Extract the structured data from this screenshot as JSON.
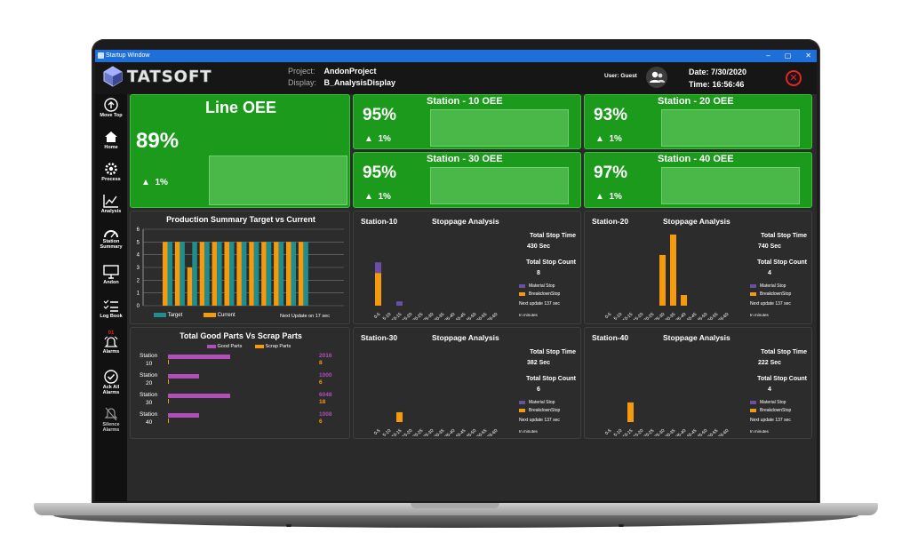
{
  "window": {
    "title": "Startup Window"
  },
  "header": {
    "logo_text": "TATSOFT",
    "project_label": "Project:",
    "project_value": "AndonProject",
    "display_label": "Display:",
    "display_value": "B_AnalysisDisplay",
    "user_label": "User: Guest",
    "date_label": "Date: 7/30/2020",
    "time_label": "Time: 16:56:46"
  },
  "sidebar": {
    "items": [
      {
        "label": "Move Top",
        "icon": "arrow-up-circle-icon"
      },
      {
        "label": "Home",
        "icon": "home-icon"
      },
      {
        "label": "Process",
        "icon": "gear-icon"
      },
      {
        "label": "Analysis",
        "icon": "line-chart-icon"
      },
      {
        "label": "Station Summary",
        "icon": "gauge-icon"
      },
      {
        "label": "Andon",
        "icon": "monitor-icon"
      },
      {
        "label": "Log Book",
        "icon": "checklist-icon"
      },
      {
        "label": "Alarms",
        "icon": "alarm-bell-icon",
        "badge": "01"
      },
      {
        "label": "Ack All Alarms",
        "icon": "check-circle-icon"
      },
      {
        "label": "Silence Alarms",
        "icon": "bell-off-icon"
      }
    ]
  },
  "oee": {
    "line": {
      "title": "Line OEE",
      "value": "89%",
      "delta": "1%"
    },
    "stations": [
      {
        "title": "Station - 10 OEE",
        "value": "95%",
        "delta": "1%"
      },
      {
        "title": "Station - 20 OEE",
        "value": "93%",
        "delta": "1%"
      },
      {
        "title": "Station - 30 OEE",
        "value": "95%",
        "delta": "1%"
      },
      {
        "title": "Station - 40 OEE",
        "value": "97%",
        "delta": "1%"
      }
    ],
    "arrow": "▲"
  },
  "production": {
    "title": "Production Summary Target vs Current",
    "legend_target": "Target",
    "legend_current": "Current",
    "next_update": "Next Update on 17 sec"
  },
  "good_parts": {
    "title": "Total Good Parts Vs Scrap Parts",
    "legend_good": "Good Parts",
    "legend_scrap": "Scrap Parts",
    "rows": [
      {
        "station": "Station",
        "num": "10",
        "good": "2016",
        "scrap": "8"
      },
      {
        "station": "Station",
        "num": "20",
        "good": "1000",
        "scrap": "6"
      },
      {
        "station": "Station",
        "num": "30",
        "good": "6048",
        "scrap": "18"
      },
      {
        "station": "Station",
        "num": "40",
        "good": "1008",
        "scrap": "6"
      }
    ]
  },
  "stoppage": {
    "label": "Stoppage Analysis",
    "stop_time_label": "Total Stop Time",
    "stop_count_label": "Total Stop Count",
    "legend_material": "Material Stop",
    "legend_breakdown": "BreakdownStop",
    "unit": "In minutes",
    "panels": [
      {
        "station": "Station-10",
        "stop_time": "430 Sec",
        "stop_count": "8",
        "next_update": "Next update 137 sec"
      },
      {
        "station": "Station-20",
        "stop_time": "740 Sec",
        "stop_count": "4",
        "next_update": "Next update 137 sec"
      },
      {
        "station": "Station-30",
        "stop_time": "382 Sec",
        "stop_count": "6",
        "next_update": "Next update 137 sec"
      },
      {
        "station": "Station-40",
        "stop_time": "222 Sec",
        "stop_count": "4",
        "next_update": "Next update 137 sec"
      }
    ]
  },
  "colors": {
    "green": "#1b9a1b",
    "target": "#1e8e8e",
    "current": "#f59a0c",
    "material": "#6b4ea6",
    "good": "#b04fb8"
  },
  "chart_data": [
    {
      "type": "bar",
      "title": "Production Summary Target vs Current",
      "ylim": [
        0,
        6
      ],
      "y_ticks": [
        "0",
        "1",
        "2",
        "3",
        "4",
        "5",
        "6"
      ],
      "series": [
        {
          "name": "Target",
          "values": [
            5,
            5,
            5,
            5,
            5,
            5,
            5,
            5,
            5,
            5,
            5,
            5
          ]
        },
        {
          "name": "Current",
          "values": [
            5,
            5,
            3,
            5,
            5,
            5,
            5,
            5,
            5,
            5,
            5,
            5
          ]
        }
      ]
    },
    {
      "type": "bar",
      "title": "Total Good Parts Vs Scrap Parts",
      "categories": [
        "Station 10",
        "Station 20",
        "Station 30",
        "Station 40"
      ],
      "series": [
        {
          "name": "Good Parts",
          "values": [
            2016,
            1000,
            6048,
            1008
          ]
        },
        {
          "name": "Scrap Parts",
          "values": [
            8,
            6,
            18,
            6
          ]
        }
      ]
    },
    {
      "type": "bar",
      "categories": [
        "0-5",
        "5-10",
        "10-15",
        "15-20",
        "20-25",
        "25-30",
        "30-35",
        "35-40",
        "40-45",
        "45-50",
        "50-55",
        "55-60"
      ],
      "xlabel": "In minutes",
      "stations": [
        {
          "name": "Station-10",
          "material": [
            1,
            0,
            0.4,
            0,
            0,
            0,
            0,
            0,
            0,
            0,
            0,
            0
          ],
          "breakdown": [
            4,
            0,
            0,
            0,
            0,
            0,
            0,
            0,
            0,
            0,
            0,
            0
          ]
        },
        {
          "name": "Station-20",
          "material": [
            0,
            0,
            0,
            0,
            0,
            0,
            0,
            0,
            0,
            0,
            0,
            0
          ],
          "breakdown": [
            0,
            0,
            0,
            0,
            0,
            6.2,
            8.7,
            1.3,
            0,
            0,
            0,
            0
          ]
        },
        {
          "name": "Station-30",
          "material": [
            0,
            0,
            0,
            0,
            0,
            0,
            0,
            0,
            0,
            0,
            0,
            0
          ],
          "breakdown": [
            0,
            0,
            1.2,
            0,
            0,
            0,
            0,
            0,
            0,
            0,
            0,
            0
          ]
        },
        {
          "name": "Station-40",
          "material": [
            0,
            0,
            0,
            0,
            0,
            0,
            0,
            0,
            0,
            0,
            0,
            0
          ],
          "breakdown": [
            0,
            0,
            2.4,
            0,
            0,
            0,
            0,
            0,
            0,
            0,
            0,
            0
          ]
        }
      ]
    }
  ]
}
